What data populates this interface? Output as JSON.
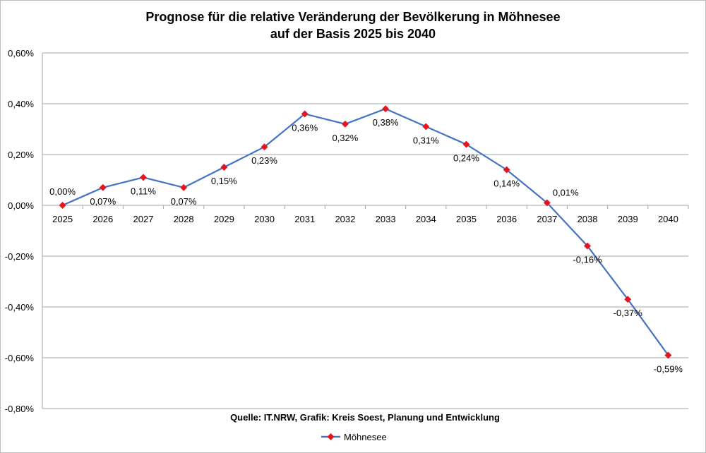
{
  "chart_data": {
    "type": "line",
    "title": [
      "Prognose für die relative Veränderung der Bevölkerung in Möhnesee",
      "auf der Basis 2025 bis 2040"
    ],
    "source": "Quelle: IT.NRW, Grafik: Kreis Soest, Planung und Entwicklung",
    "categories": [
      "2025",
      "2026",
      "2027",
      "2028",
      "2029",
      "2030",
      "2031",
      "2032",
      "2033",
      "2034",
      "2035",
      "2036",
      "2037",
      "2038",
      "2039",
      "2040"
    ],
    "series": [
      {
        "name": "Möhnesee",
        "values": [
          0.0,
          0.07,
          0.11,
          0.07,
          0.15,
          0.23,
          0.36,
          0.32,
          0.38,
          0.31,
          0.24,
          0.14,
          0.01,
          -0.16,
          -0.37,
          -0.59
        ],
        "labels": [
          "0,00%",
          "0,07%",
          "0,11%",
          "0,07%",
          "0,15%",
          "0,23%",
          "0,36%",
          "0,32%",
          "0,38%",
          "0,31%",
          "0,24%",
          "0,14%",
          "0,01%",
          "-0,16%",
          "-0,37%",
          "-0,59%"
        ],
        "line_color": "#4472c4",
        "marker_color": "#e8131b"
      }
    ],
    "ylim": [
      -0.8,
      0.6
    ],
    "yticks": [
      0.6,
      0.4,
      0.2,
      0.0,
      -0.2,
      -0.4,
      -0.6,
      -0.8
    ],
    "ytick_labels": [
      "0,60%",
      "0,40%",
      "0,20%",
      "0,00%",
      "-0,20%",
      "-0,40%",
      "-0,60%",
      "-0,80%"
    ],
    "grid": true,
    "legend": "bottom"
  }
}
